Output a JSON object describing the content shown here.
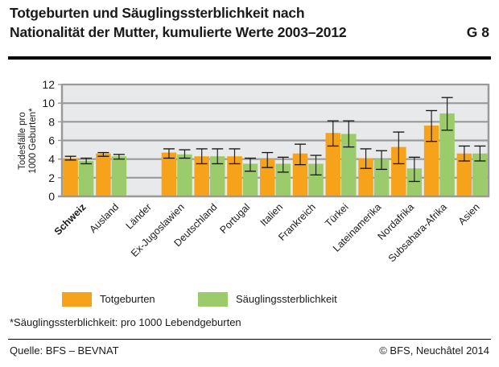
{
  "header": {
    "title_line1": "Totgeburten und Säuglingssterblichkeit nach",
    "title_line2": "Nationalität der Mutter, kumulierte Werte 2003–2012",
    "figure_code": "G 8"
  },
  "colors": {
    "totgeburten": "#F7A21B",
    "saeuglingssterblichkeit": "#9CCB6B",
    "plot_background": "#E8E9EB",
    "gridline": "#9A9A9A"
  },
  "chart_data": {
    "type": "bar",
    "title": "Totgeburten und Säuglingssterblichkeit nach Nationalität der Mutter, kumulierte Werte 2003–2012",
    "xlabel": "",
    "ylabel": "Todesfälle pro 1000 Geburten*",
    "ylabel_lines": [
      "Todesfälle pro",
      "1000 Geburten*"
    ],
    "ylim": [
      0,
      12
    ],
    "yticks": [
      0,
      2,
      4,
      6,
      8,
      10,
      12
    ],
    "grid": true,
    "legend_position": "bottom",
    "categories": [
      "Schweiz",
      "Ausland",
      "Länder",
      "Ex-Jugoslawien",
      "Deutschland",
      "Portugal",
      "Italien",
      "Frankreich",
      "Türkei",
      "Lateinamerika",
      "Nordafrika",
      "Subsahara-Afrika",
      "Asien"
    ],
    "bold_categories": [
      "Schweiz"
    ],
    "group_label_categories": [
      "Länder"
    ],
    "series": [
      {
        "name": "Totgeburten",
        "values": [
          4.1,
          4.6,
          null,
          4.7,
          4.3,
          4.3,
          4.0,
          4.6,
          6.8,
          4.1,
          5.3,
          7.6,
          4.6
        ],
        "error_low": [
          3.9,
          4.3,
          null,
          4.1,
          3.5,
          3.5,
          3.1,
          3.4,
          5.4,
          3.0,
          3.5,
          5.9,
          3.8
        ],
        "error_high": [
          4.3,
          4.7,
          null,
          5.1,
          5.1,
          5.1,
          4.7,
          5.6,
          8.1,
          5.1,
          6.9,
          9.2,
          5.4
        ]
      },
      {
        "name": "Säuglingssterblichkeit",
        "values": [
          3.8,
          4.3,
          null,
          4.5,
          4.3,
          3.5,
          3.5,
          3.5,
          6.7,
          4.0,
          3.0,
          8.9,
          4.6
        ],
        "error_low": [
          3.5,
          4.0,
          null,
          4.1,
          3.5,
          2.7,
          2.6,
          2.3,
          5.3,
          2.9,
          1.6,
          7.1,
          3.8
        ],
        "error_high": [
          4.1,
          4.5,
          null,
          5.0,
          5.1,
          4.1,
          4.2,
          4.4,
          8.1,
          4.9,
          4.2,
          10.6,
          5.4
        ]
      }
    ]
  },
  "legend": {
    "items": [
      {
        "label": "Totgeburten"
      },
      {
        "label": "Säuglingssterblichkeit"
      }
    ]
  },
  "footer": {
    "footnote": "*Säuglingssterblichkeit: pro 1000 Lebendgeburten",
    "source": "Quelle: BFS – BEVNAT",
    "copyright": "© BFS, Neuchâtel 2014"
  }
}
